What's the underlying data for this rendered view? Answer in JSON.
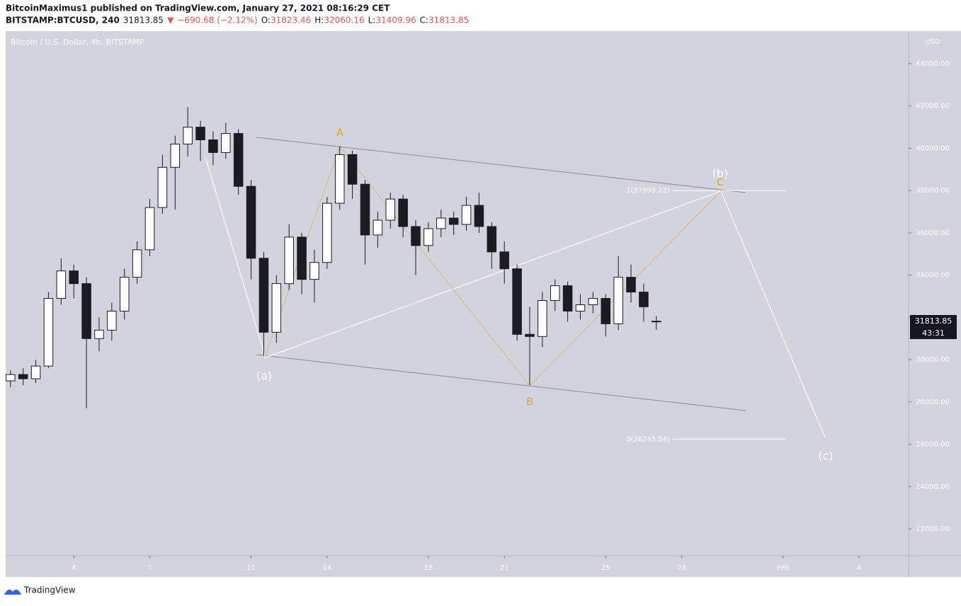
{
  "header": {
    "byline": "BitcoinMaximus1 published on TradingView.com, January 27, 2021 08:16:29 CET",
    "quote": [
      "BITSTAMP:BTCUSD, 240",
      "31813.85",
      "▼",
      "−690.68 (−2.12%)",
      "O:",
      "31823.46",
      "H:",
      "32060.16",
      "L:",
      "31409.96",
      "C:",
      "31813.85"
    ]
  },
  "footer": {
    "brand": "TradingView"
  },
  "chart_data": {
    "type": "candlestick",
    "title": "Bitcoin / U.S. Dollar, 4h, BITSTAMP",
    "y_axis_label": "USD",
    "countdown": "43:31",
    "up_color": "#ffffff",
    "down_color": "#1b1b22",
    "x": [
      1.5,
      2,
      2.5,
      3,
      3.5,
      4,
      4.5,
      5,
      5.5,
      6,
      6.5,
      7,
      7.5,
      8,
      8.5,
      9,
      9.5,
      10,
      10.5,
      11,
      11.5,
      12,
      12.5,
      13,
      13.5,
      14,
      14.5,
      15,
      15.5,
      16,
      16.5,
      17,
      17.5,
      18,
      18.5,
      19,
      19.5,
      20,
      20.5,
      21,
      21.5,
      22,
      22.5,
      23,
      23.5,
      24,
      24.5,
      25,
      25.5,
      26,
      26.5,
      27
    ],
    "open": [
      29000,
      29300,
      29100,
      29700,
      32900,
      34200,
      33600,
      31000,
      31400,
      32300,
      33900,
      35200,
      37200,
      39100,
      40200,
      41000,
      40400,
      39800,
      40700,
      38200,
      34800,
      31300,
      33600,
      35800,
      33800,
      34600,
      37400,
      39700,
      38300,
      35900,
      36600,
      37600,
      36300,
      35400,
      36200,
      36700,
      36400,
      37300,
      36300,
      35100,
      34300,
      31200,
      31100,
      32800,
      33500,
      32300,
      32600,
      32900,
      31700,
      33900,
      33200,
      31823.46
    ],
    "high": [
      29500,
      29600,
      30000,
      33200,
      34800,
      34500,
      33900,
      32000,
      32700,
      34300,
      35600,
      37600,
      39700,
      40600,
      41950,
      41300,
      40800,
      41200,
      40900,
      38500,
      35100,
      34000,
      36400,
      36000,
      35200,
      37700,
      40100,
      39900,
      38500,
      37000,
      37900,
      37800,
      36600,
      36500,
      37100,
      37000,
      37700,
      37900,
      36500,
      35600,
      34500,
      32500,
      33200,
      33800,
      33700,
      33100,
      33200,
      33100,
      34900,
      34500,
      33600,
      32060.16
    ],
    "low": [
      28700,
      28800,
      28900,
      29600,
      32600,
      32900,
      27700,
      30400,
      30900,
      31900,
      33600,
      34900,
      36900,
      37100,
      39600,
      39400,
      39200,
      39500,
      37800,
      33800,
      30200,
      30800,
      33300,
      33100,
      32700,
      34300,
      37100,
      37600,
      34500,
      35300,
      36200,
      35800,
      34000,
      35100,
      35800,
      35900,
      36100,
      36000,
      34300,
      33600,
      30900,
      28800,
      30600,
      32300,
      31800,
      31900,
      32200,
      31100,
      31400,
      32700,
      31800,
      31409.96
    ],
    "close": [
      29300,
      29100,
      29700,
      32900,
      34200,
      33600,
      31000,
      31400,
      32300,
      33900,
      35200,
      37200,
      39100,
      40200,
      41000,
      40400,
      39800,
      40700,
      38200,
      34800,
      31300,
      33600,
      35800,
      33800,
      34600,
      37400,
      39700,
      38300,
      35900,
      36600,
      37600,
      36300,
      35400,
      36200,
      36700,
      36400,
      37300,
      36300,
      35100,
      34300,
      31200,
      31100,
      32800,
      33500,
      32300,
      32600,
      32900,
      31700,
      33900,
      33200,
      32504.53,
      31813.85
    ],
    "xlim": [
      1.31,
      36.96
    ],
    "xticks": [
      4,
      7,
      11,
      14,
      18,
      21,
      25,
      28,
      {
        "value": 32,
        "label": "Feb"
      },
      {
        "value": 35,
        "label": "4"
      }
    ],
    "ylim": [
      20730,
      45540
    ],
    "yticks": [
      {
        "value": 22000,
        "label": "22000.00"
      },
      {
        "value": 24000,
        "label": "24000.00"
      },
      {
        "value": 26000,
        "label": "26000.00"
      },
      {
        "value": 28000,
        "label": "28000.00"
      },
      {
        "value": 30000,
        "label": "30000.00"
      },
      {
        "value": 32000,
        "label": "32000.00"
      },
      {
        "value": 34000,
        "label": "34000.00"
      },
      {
        "value": 36000,
        "label": "36000.00"
      },
      {
        "value": 38000,
        "label": "38000.00"
      },
      {
        "value": 40000,
        "label": "40000.00"
      },
      {
        "value": 42000,
        "label": "42000.00"
      },
      {
        "value": 44000,
        "label": "44000.00"
      }
    ],
    "fib_levels": [
      {
        "label": "1(37999.23)",
        "value": 37999.23
      },
      {
        "label": "0(26245.54)",
        "value": 26245.54
      }
    ],
    "wave_labels": [
      "(a)",
      "(b)",
      "(c)",
      "A",
      "B",
      "C"
    ]
  }
}
